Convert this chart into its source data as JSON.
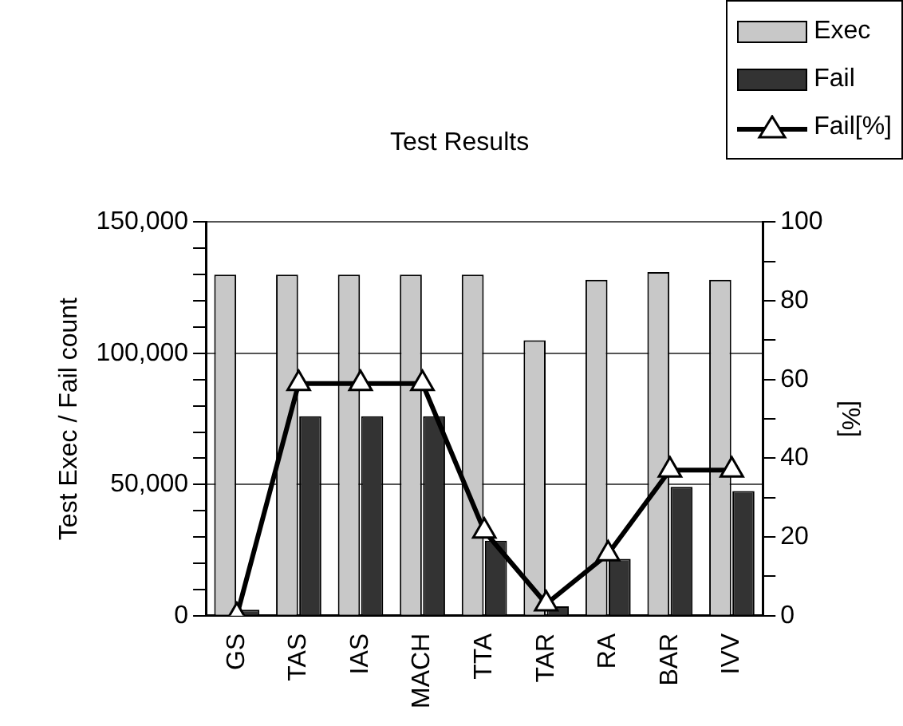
{
  "chart_data": {
    "type": "bar",
    "title": "Test Results",
    "ylabel": "Test Exec / Fail count",
    "y2label": "[%]",
    "categories": [
      "GS",
      "TAS",
      "IAS",
      "MACH",
      "TTA",
      "TAR",
      "RA",
      "BAR",
      "IVV"
    ],
    "series": [
      {
        "name": "Exec",
        "color": "#c8c8c8",
        "values": [
          130000,
          130000,
          130000,
          130000,
          130000,
          105000,
          128000,
          131000,
          128000
        ]
      },
      {
        "name": "Fail",
        "color": "#333333",
        "values": [
          2300,
          76000,
          76000,
          76000,
          28600,
          3600,
          21700,
          49100,
          47500
        ]
      },
      {
        "name": "Fail[%]",
        "type": "line",
        "axis": "y2",
        "color": "#000000",
        "marker": "triangle",
        "values": [
          0,
          59,
          59,
          59,
          21.5,
          3,
          15.7,
          37,
          37
        ]
      }
    ],
    "ylim": [
      0,
      150000
    ],
    "yticks": [
      0,
      {
        "value": 10000,
        "label": null
      },
      {
        "value": 20000,
        "label": null
      },
      {
        "value": 30000,
        "label": null
      },
      {
        "value": 40000,
        "label": null
      },
      {
        "value": 50000,
        "label": "50,000"
      },
      {
        "value": 60000,
        "label": null
      },
      {
        "value": 70000,
        "label": null
      },
      {
        "value": 80000,
        "label": null
      },
      {
        "value": 90000,
        "label": null
      },
      {
        "value": 100000,
        "label": "100,000"
      },
      {
        "value": 110000,
        "label": null
      },
      {
        "value": 120000,
        "label": null
      },
      {
        "value": 130000,
        "label": null
      },
      {
        "value": 140000,
        "label": null
      },
      {
        "value": 150000,
        "label": "150,000"
      }
    ],
    "y2lim": [
      0,
      100
    ],
    "y2ticks": [
      0,
      {
        "value": 10,
        "label": null
      },
      20,
      {
        "value": 30,
        "label": null
      },
      40,
      {
        "value": 50,
        "label": null
      },
      60,
      {
        "value": 70,
        "label": null
      },
      80,
      {
        "value": 90,
        "label": null
      },
      100
    ],
    "grid": "y",
    "legend": "top right"
  }
}
